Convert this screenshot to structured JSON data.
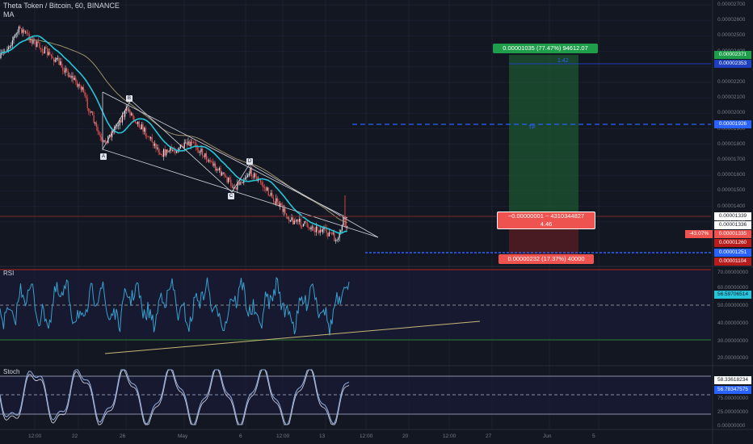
{
  "header": {
    "symbol": "Theta Token / Bitcoin, 60, BINANCE",
    "indicator": "MA"
  },
  "price_axis": {
    "ticks": [
      "0.00002700",
      "0.00002600",
      "0.00002500",
      "0.00002400",
      "0.00002300",
      "0.00002200",
      "0.00002100",
      "0.00002000",
      "0.00001900",
      "0.00001800",
      "0.00001700",
      "0.00001600",
      "0.00001500",
      "0.00001400",
      "0.00001300"
    ]
  },
  "price_labels": {
    "target": "0.00002371",
    "target2": "0.00002353",
    "tp": "0.00001926",
    "last": "0.00001339",
    "l2": "0.00001336",
    "l3": "0.00001335",
    "l4": "0.00001260",
    "l5": "0.00001251",
    "stop": "0.00001104",
    "pct": "-43.07%"
  },
  "position_tool": {
    "profit_text": "0.00001035 (77.47%) 94612.07",
    "mid_text_1": "−0.00000001 ~ 4310344827",
    "mid_text_2": "4.46",
    "loss_text": "0.00000232 (17.37%) 40000",
    "tp_label": "TP",
    "target_label": "1.42"
  },
  "pattern_points": [
    "A",
    "B",
    "C",
    "D",
    "E"
  ],
  "rsi": {
    "label": "RSI",
    "value": "56.59706514",
    "ticks": [
      "70.00000000",
      "60.00000000",
      "50.00000000",
      "40.00000000",
      "30.00000000",
      "20.00000000"
    ]
  },
  "stoch": {
    "label": "Stoch",
    "value1": "58.33618234",
    "value2": "56.78347575",
    "ticks": [
      "75.00000000",
      "25.00000000",
      "0.00000000"
    ]
  },
  "time_axis": {
    "ticks": [
      "12:00",
      "22",
      "26",
      "May",
      "6",
      "12:00",
      "13",
      "12:00",
      "20",
      "12:00",
      "27",
      "Jun",
      "5"
    ]
  },
  "colors": {
    "bg": "#131722",
    "up": "#e0e3eb",
    "down": "#ef5350",
    "ma_fast": "#26c6da",
    "ma_slow": "#9c8f6a",
    "profit": "#1e5a32",
    "loss": "#5a1e22",
    "rsi_line": "#3aa0d0",
    "stoch_line": "#8aa7d8"
  }
}
